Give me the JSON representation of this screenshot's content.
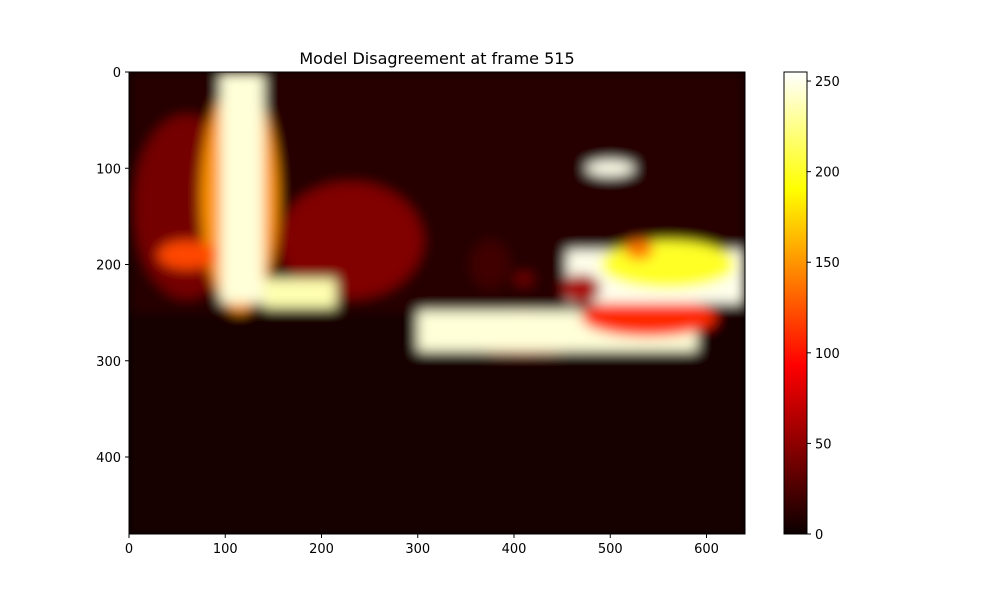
{
  "chart_data": {
    "type": "heatmap",
    "title": "Model Disagreement at frame 515",
    "xlabel": "",
    "ylabel": "",
    "colormap": "hot",
    "colormap_stops": [
      "#0b0000",
      "#ff0000",
      "#ffff00",
      "#ffffff"
    ],
    "image_shape": [
      480,
      640
    ],
    "xlim": [
      0,
      640
    ],
    "ylim": [
      480,
      0
    ],
    "x_ticks": [
      0,
      100,
      200,
      300,
      400,
      500,
      600
    ],
    "x_tick_labels": [
      "0",
      "100",
      "200",
      "300",
      "400",
      "500",
      "600"
    ],
    "y_ticks": [
      0,
      100,
      200,
      300,
      400
    ],
    "y_tick_labels": [
      "0",
      "100",
      "200",
      "300",
      "400"
    ],
    "colorbar": {
      "range": [
        0,
        255
      ],
      "ticks": [
        0,
        50,
        100,
        150,
        200,
        250
      ],
      "tick_labels": [
        "0",
        "50",
        "100",
        "150",
        "200",
        "250"
      ]
    },
    "regions": [
      {
        "shape": "rect",
        "x": [
          0,
          640
        ],
        "y": [
          250,
          480
        ],
        "value": 4
      },
      {
        "shape": "rect",
        "x": [
          0,
          640
        ],
        "y": [
          0,
          250
        ],
        "value": 10
      },
      {
        "shape": "ellipse",
        "cx": 60,
        "cy": 140,
        "rx": 55,
        "ry": 95,
        "value": 40
      },
      {
        "shape": "ellipse",
        "cx": 230,
        "cy": 175,
        "rx": 75,
        "ry": 60,
        "value": 45
      },
      {
        "shape": "ellipse",
        "cx": 115,
        "cy": 130,
        "rx": 40,
        "ry": 120,
        "value": 150
      },
      {
        "shape": "rect",
        "x": [
          95,
          140
        ],
        "y": [
          0,
          240
        ],
        "value": 245
      },
      {
        "shape": "rect",
        "x": [
          140,
          215
        ],
        "y": [
          215,
          245
        ],
        "value": 235
      },
      {
        "shape": "ellipse",
        "cx": 60,
        "cy": 190,
        "rx": 30,
        "ry": 15,
        "value": 120
      },
      {
        "shape": "ellipse",
        "cx": 410,
        "cy": 270,
        "rx": 110,
        "ry": 22,
        "value": 130
      },
      {
        "shape": "rect",
        "x": [
          300,
          590
        ],
        "y": [
          248,
          290
        ],
        "value": 245
      },
      {
        "shape": "ellipse",
        "cx": 540,
        "cy": 255,
        "rx": 70,
        "ry": 20,
        "value": 110
      },
      {
        "shape": "rect",
        "x": [
          455,
          640
        ],
        "y": [
          185,
          240
        ],
        "value": 250
      },
      {
        "shape": "ellipse",
        "cx": 560,
        "cy": 200,
        "rx": 70,
        "ry": 25,
        "value": 200
      },
      {
        "shape": "ellipse",
        "cx": 470,
        "cy": 225,
        "rx": 20,
        "ry": 15,
        "value": 60
      },
      {
        "shape": "ellipse",
        "cx": 500,
        "cy": 100,
        "rx": 25,
        "ry": 8,
        "value": 250
      },
      {
        "shape": "ellipse",
        "cx": 530,
        "cy": 185,
        "rx": 15,
        "ry": 10,
        "value": 140
      },
      {
        "shape": "ellipse",
        "cx": 375,
        "cy": 200,
        "rx": 20,
        "ry": 25,
        "value": 20
      },
      {
        "shape": "ellipse",
        "cx": 410,
        "cy": 215,
        "rx": 10,
        "ry": 6,
        "value": 40
      }
    ]
  }
}
